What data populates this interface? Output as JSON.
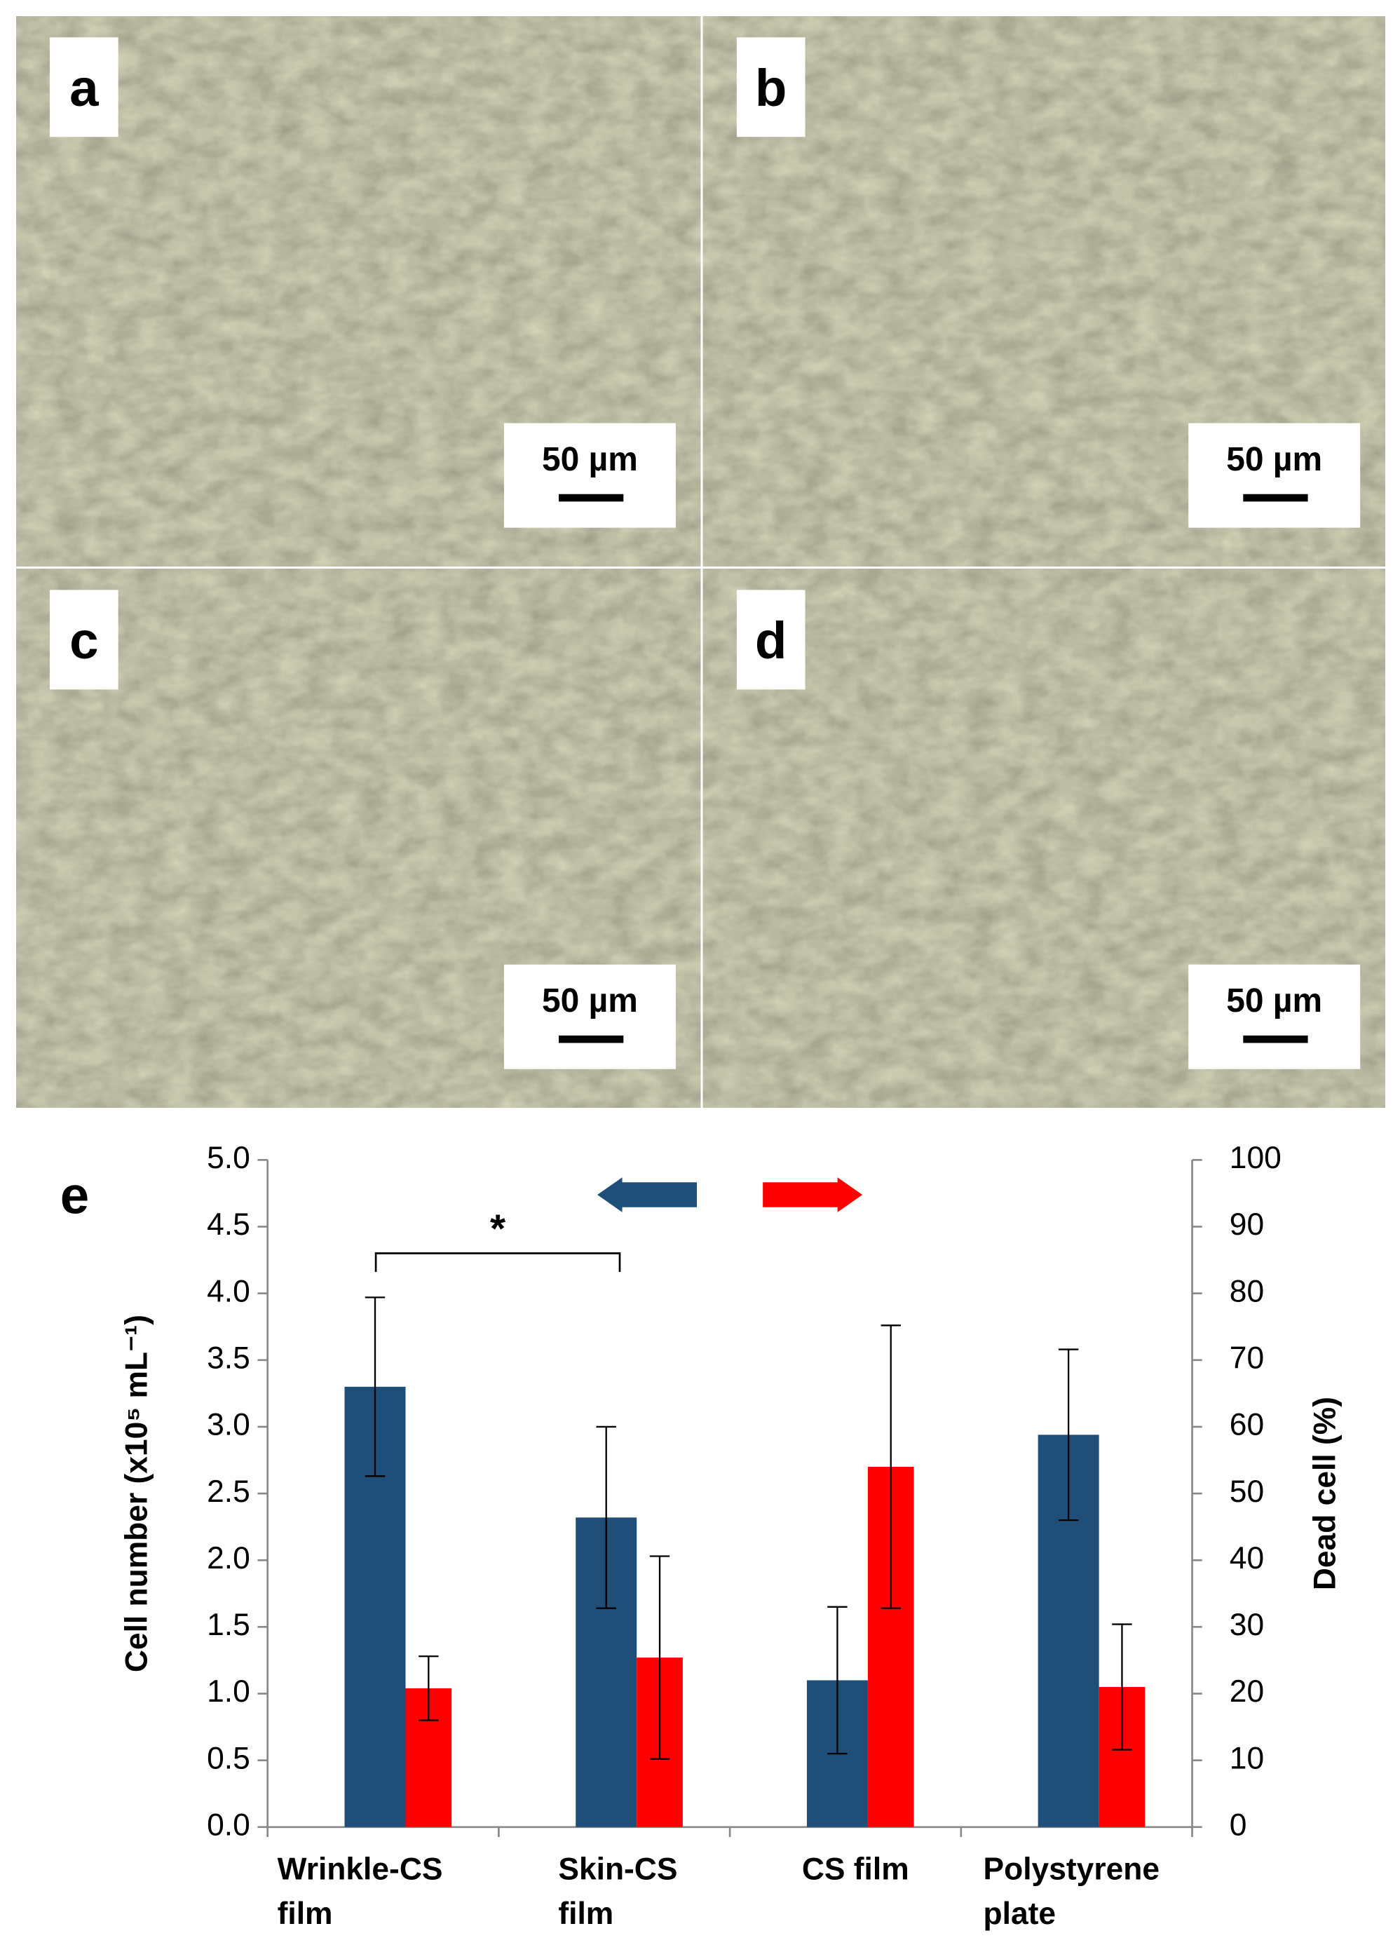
{
  "panels": [
    {
      "label": "a",
      "scale_bar": "50 µm"
    },
    {
      "label": "b",
      "scale_bar": "50 µm"
    },
    {
      "label": "c",
      "scale_bar": "50 µm"
    },
    {
      "label": "d",
      "scale_bar": "50 µm"
    }
  ],
  "chart_data": {
    "type": "bar",
    "panel_label": "e",
    "categories": [
      [
        "Wrinkle-CS",
        "film"
      ],
      [
        "Skin-CS",
        "film"
      ],
      [
        "CS film"
      ],
      [
        "Polystyrene",
        "plate"
      ]
    ],
    "y_label": "Cell number (x10⁵ mL⁻¹)",
    "y2_label": "Dead cell (%)",
    "series": [
      {
        "name": "Cell number",
        "color": "#1f4e79",
        "values": [
          3.3,
          2.32,
          1.1,
          2.94
        ],
        "errors": [
          0.67,
          0.68,
          0.55,
          0.64
        ]
      },
      {
        "name": "Dead cell",
        "color": "#ff0000",
        "axis": "y2",
        "values": [
          20.8,
          25.4,
          54,
          21
        ],
        "errors": [
          4.8,
          15.2,
          21.2,
          9.4
        ]
      }
    ],
    "ylim": [
      0,
      5
    ],
    "yticks": [
      {
        "value": 0,
        "label": "0.0"
      },
      {
        "value": 0.5,
        "label": "0.5"
      },
      {
        "value": 1,
        "label": "1.0"
      },
      {
        "value": 1.5,
        "label": "1.5"
      },
      {
        "value": 2,
        "label": "2.0"
      },
      {
        "value": 2.5,
        "label": "2.5"
      },
      {
        "value": 3,
        "label": "3.0"
      },
      {
        "value": 3.5,
        "label": "3.5"
      },
      {
        "value": 4,
        "label": "4.0"
      },
      {
        "value": 4.5,
        "label": "4.5"
      },
      {
        "value": 5,
        "label": "5.0"
      }
    ],
    "y2lim": [
      0,
      100
    ],
    "y2ticks": [
      0,
      10,
      20,
      30,
      40,
      50,
      60,
      70,
      80,
      90,
      100
    ],
    "annotation": "*"
  }
}
